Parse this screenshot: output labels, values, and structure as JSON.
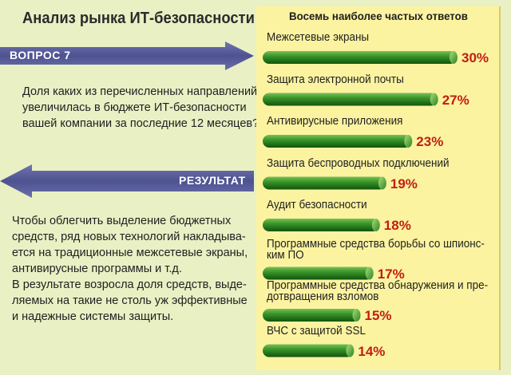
{
  "title": "Анализ рынка ИТ-безопасности",
  "question": {
    "label": "ВОПРОС 7",
    "text": [
      "Доля каких из перечисленных направлений",
      "увеличилась в бюджете ИТ-безопасности",
      "вашей компании за последние 12 месяцев?"
    ]
  },
  "result": {
    "label": "РЕЗУЛЬТАТ",
    "text": [
      "Чтобы облегчить выделение бюджетных",
      "средств, ряд новых технологий накладыва-",
      "ется на традиционные межсетевые экраны,",
      "антивирусные программы и т.д.",
      "В результате возросла доля средств, выде-",
      "ляемых на такие не столь уж эффективные",
      "и надежные системы защиты."
    ]
  },
  "colors": {
    "background": "#e9f0c4",
    "panel": "#fbf3a0",
    "arrow": "#5a5f9c",
    "bar": "#2f8a24",
    "value_text": "#c21d12"
  },
  "chart_data": {
    "type": "bar",
    "orientation": "horizontal",
    "title": "Восемь  наиболее частых ответов",
    "unit": "%",
    "categories": [
      "Межсетевые экраны",
      "Защита электронной почты",
      "Антивирусные приложения",
      "Защита беспроводных подключений",
      "Аудит безопасности",
      "Программные средства борьбы со шпионс-\nким ПО",
      "Программные средства обнаружения и пре-\nдотвращения взломов",
      "ВЧС с защитой SSL"
    ],
    "values": [
      30,
      27,
      23,
      19,
      18,
      17,
      15,
      14
    ],
    "value_labels": [
      "30%",
      "27%",
      "23%",
      "19%",
      "18%",
      "17%",
      "15%",
      "14%"
    ]
  }
}
